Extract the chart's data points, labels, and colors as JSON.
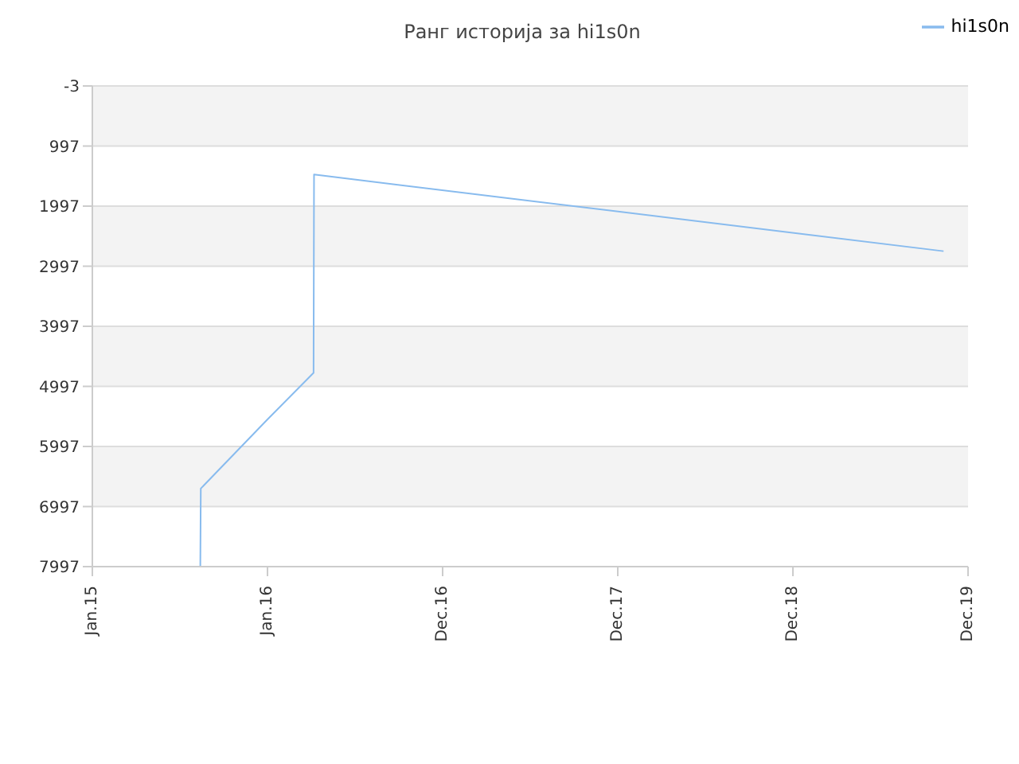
{
  "chart_data": {
    "type": "line",
    "title": "Ранг историја за hi1s0n",
    "x": [
      "2015-08-14",
      "2015-08-15",
      "2016-01-01",
      "2016-04-06",
      "2016-04-07",
      "2019-11-10"
    ],
    "series": [
      {
        "name": "hi1s0n",
        "color": "#88bbee",
        "values": [
          7997,
          6697,
          5547,
          4772,
          1472,
          2747
        ]
      }
    ],
    "xlim": [
      "2015-01-01",
      "2019-12-31"
    ],
    "xticks": [
      {
        "value": "2015-01-01",
        "label": "Jan.15"
      },
      {
        "value": "2016-01-01",
        "label": "Jan.16"
      },
      {
        "value": "2016-12-31",
        "label": "Dec.16"
      },
      {
        "value": "2017-12-31",
        "label": "Dec.17"
      },
      {
        "value": "2018-12-31",
        "label": "Dec.18"
      },
      {
        "value": "2019-12-31",
        "label": "Dec.19"
      }
    ],
    "ylim": [
      7997,
      -3
    ],
    "yticks": [
      -3,
      997,
      1997,
      2997,
      3997,
      4997,
      5997,
      6997,
      7997
    ],
    "grid": "y",
    "legend": "top right",
    "marker": "none",
    "line_style": "solid"
  }
}
